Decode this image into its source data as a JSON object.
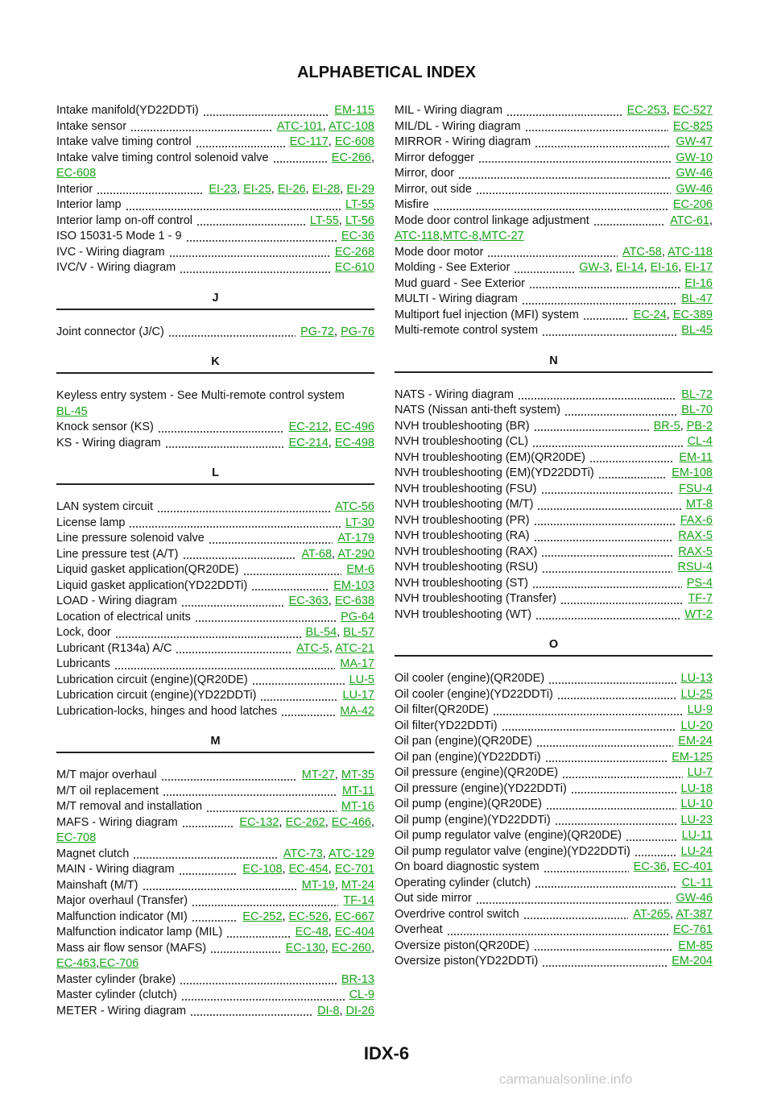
{
  "header": {
    "title": "ALPHABETICAL INDEX"
  },
  "link_separator": ", ",
  "columns": [
    {
      "sections": [
        {
          "entries": [
            {
              "text": "Intake manifold(YD22DDTi)",
              "links": [
                "EM-115"
              ]
            },
            {
              "text": "Intake sensor",
              "links": [
                "ATC-101",
                "ATC-108"
              ]
            },
            {
              "text": "Intake valve timing control",
              "links": [
                "EC-117",
                "EC-608"
              ]
            },
            {
              "text": "Intake valve timing control solenoid valve",
              "links": [
                "EC-266"
              ],
              "wrap_links": [
                "EC-608"
              ]
            },
            {
              "text": "Interior",
              "links": [
                "EI-23",
                "EI-25",
                "EI-26",
                "EI-28",
                "EI-29"
              ]
            },
            {
              "text": "Interior lamp",
              "links": [
                "LT-55"
              ]
            },
            {
              "text": "Interior lamp on-off control",
              "links": [
                "LT-55",
                "LT-56"
              ]
            },
            {
              "text": "ISO 15031-5 Mode 1 - 9",
              "links": [
                "EC-36"
              ]
            },
            {
              "text": "IVC - Wiring diagram",
              "links": [
                "EC-268"
              ]
            },
            {
              "text": "IVC/V - Wiring diagram",
              "links": [
                "EC-610"
              ]
            }
          ]
        },
        {
          "letter": "J",
          "entries": [
            {
              "text": "Joint connector (J/C)",
              "links": [
                "PG-72",
                "PG-76"
              ]
            }
          ]
        },
        {
          "letter": "K",
          "entries": [
            {
              "text": "Keyless entry system - See Multi-remote control system",
              "wrap_links": [
                "BL-45"
              ]
            },
            {
              "text": "Knock sensor (KS)",
              "links": [
                "EC-212",
                "EC-496"
              ]
            },
            {
              "text": "KS - Wiring diagram",
              "links": [
                "EC-214",
                "EC-498"
              ]
            }
          ]
        },
        {
          "letter": "L",
          "entries": [
            {
              "text": "LAN system circuit",
              "links": [
                "ATC-56"
              ]
            },
            {
              "text": "License lamp",
              "links": [
                "LT-30"
              ]
            },
            {
              "text": "Line pressure solenoid valve",
              "links": [
                "AT-179"
              ]
            },
            {
              "text": "Line pressure test (A/T)",
              "links": [
                "AT-68",
                "AT-290"
              ]
            },
            {
              "text": "Liquid gasket application(QR20DE)",
              "links": [
                "EM-6"
              ]
            },
            {
              "text": "Liquid gasket application(YD22DDTi)",
              "links": [
                "EM-103"
              ]
            },
            {
              "text": "LOAD - Wiring diagram",
              "links": [
                "EC-363",
                "EC-638"
              ]
            },
            {
              "text": "Location of electrical units",
              "links": [
                "PG-64"
              ]
            },
            {
              "text": "Lock, door",
              "links": [
                "BL-54",
                "BL-57"
              ]
            },
            {
              "text": "Lubricant (R134a) A/C",
              "links": [
                "ATC-5",
                "ATC-21"
              ]
            },
            {
              "text": "Lubricants",
              "links": [
                "MA-17"
              ]
            },
            {
              "text": "Lubrication circuit (engine)(QR20DE)",
              "links": [
                "LU-5"
              ]
            },
            {
              "text": "Lubrication circuit (engine)(YD22DDTi)",
              "links": [
                "LU-17"
              ]
            },
            {
              "text": "Lubrication-locks, hinges and hood latches",
              "links": [
                "MA-42"
              ]
            }
          ]
        },
        {
          "letter": "M",
          "entries": [
            {
              "text": "M/T major overhaul",
              "links": [
                "MT-27",
                "MT-35"
              ]
            },
            {
              "text": "M/T oil replacement",
              "links": [
                "MT-11"
              ]
            },
            {
              "text": "M/T removal and installation",
              "links": [
                "MT-16"
              ]
            },
            {
              "text": "MAFS - Wiring diagram",
              "links": [
                "EC-132",
                "EC-262",
                "EC-466"
              ],
              "wrap_links": [
                "EC-708"
              ]
            },
            {
              "text": "Magnet clutch",
              "links": [
                "ATC-73",
                "ATC-129"
              ]
            },
            {
              "text": "MAIN - Wiring diagram",
              "links": [
                "EC-108",
                "EC-454",
                "EC-701"
              ]
            },
            {
              "text": "Mainshaft (M/T)",
              "links": [
                "MT-19",
                "MT-24"
              ]
            },
            {
              "text": "Major overhaul (Transfer)",
              "links": [
                "TF-14"
              ]
            },
            {
              "text": "Malfunction indicator (MI)",
              "links": [
                "EC-252",
                "EC-526",
                "EC-667"
              ]
            },
            {
              "text": "Malfunction indicator lamp (MIL)",
              "links": [
                "EC-48",
                "EC-404"
              ]
            },
            {
              "text": "Mass air flow sensor (MAFS)",
              "links": [
                "EC-130",
                "EC-260"
              ],
              "wrap_links": [
                "EC-463",
                "EC-706"
              ]
            },
            {
              "text": "Master cylinder (brake)",
              "links": [
                "BR-13"
              ]
            },
            {
              "text": "Master cylinder (clutch)",
              "links": [
                "CL-9"
              ]
            },
            {
              "text": "METER - Wiring diagram",
              "links": [
                "DI-8",
                "DI-26"
              ]
            }
          ]
        }
      ]
    },
    {
      "sections": [
        {
          "entries": [
            {
              "text": "MIL - Wiring diagram",
              "links": [
                "EC-253",
                "EC-527"
              ]
            },
            {
              "text": "MIL/DL - Wiring diagram",
              "links": [
                "EC-825"
              ]
            },
            {
              "text": "MIRROR - Wiring diagram",
              "links": [
                "GW-47"
              ]
            },
            {
              "text": "Mirror defogger",
              "links": [
                "GW-10"
              ]
            },
            {
              "text": "Mirror, door",
              "links": [
                "GW-46"
              ]
            },
            {
              "text": "Mirror, out side",
              "links": [
                "GW-46"
              ]
            },
            {
              "text": "Misfire",
              "links": [
                "EC-206"
              ]
            },
            {
              "text": "Mode door control linkage adjustment",
              "links": [
                "ATC-61"
              ],
              "wrap_links": [
                "ATC-118",
                "MTC-8",
                "MTC-27"
              ]
            },
            {
              "text": "Mode door motor",
              "links": [
                "ATC-58",
                "ATC-118"
              ]
            },
            {
              "text": "Molding - See Exterior",
              "links": [
                "GW-3",
                "EI-14",
                "EI-16",
                "EI-17"
              ]
            },
            {
              "text": "Mud guard - See Exterior",
              "links": [
                "EI-16"
              ]
            },
            {
              "text": "MULTI - Wiring diagram",
              "links": [
                "BL-47"
              ]
            },
            {
              "text": "Multiport fuel injection (MFI) system",
              "links": [
                "EC-24",
                "EC-389"
              ]
            },
            {
              "text": "Multi-remote control system",
              "links": [
                "BL-45"
              ]
            }
          ]
        },
        {
          "letter": "N",
          "entries": [
            {
              "text": "NATS - Wiring diagram",
              "links": [
                "BL-72"
              ]
            },
            {
              "text": "NATS (Nissan anti-theft system)",
              "links": [
                "BL-70"
              ]
            },
            {
              "text": "NVH troubleshooting (BR)",
              "links": [
                "BR-5",
                "PB-2"
              ]
            },
            {
              "text": "NVH troubleshooting (CL)",
              "links": [
                "CL-4"
              ]
            },
            {
              "text": "NVH troubleshooting (EM)(QR20DE)",
              "links": [
                "EM-11"
              ]
            },
            {
              "text": "NVH troubleshooting (EM)(YD22DDTi)",
              "links": [
                "EM-108"
              ]
            },
            {
              "text": "NVH troubleshooting (FSU)",
              "links": [
                "FSU-4"
              ]
            },
            {
              "text": "NVH troubleshooting (M/T)",
              "links": [
                "MT-8"
              ]
            },
            {
              "text": "NVH troubleshooting (PR)",
              "links": [
                "FAX-6"
              ]
            },
            {
              "text": "NVH troubleshooting (RA)",
              "links": [
                "RAX-5"
              ]
            },
            {
              "text": "NVH troubleshooting (RAX)",
              "links": [
                "RAX-5"
              ]
            },
            {
              "text": "NVH troubleshooting (RSU)",
              "links": [
                "RSU-4"
              ]
            },
            {
              "text": "NVH troubleshooting (ST)",
              "links": [
                "PS-4"
              ]
            },
            {
              "text": "NVH troubleshooting (Transfer)",
              "links": [
                "TF-7"
              ]
            },
            {
              "text": "NVH troubleshooting (WT)",
              "links": [
                "WT-2"
              ]
            }
          ]
        },
        {
          "letter": "O",
          "entries": [
            {
              "text": "Oil cooler (engine)(QR20DE)",
              "links": [
                "LU-13"
              ]
            },
            {
              "text": "Oil cooler (engine)(YD22DDTi)",
              "links": [
                "LU-25"
              ]
            },
            {
              "text": "Oil filter(QR20DE)",
              "links": [
                "LU-9"
              ]
            },
            {
              "text": "Oil filter(YD22DDTi)",
              "links": [
                "LU-20"
              ]
            },
            {
              "text": "Oil pan (engine)(QR20DE)",
              "links": [
                "EM-24"
              ]
            },
            {
              "text": "Oil pan (engine)(YD22DDTi)",
              "links": [
                "EM-125"
              ]
            },
            {
              "text": "Oil pressure (engine)(QR20DE)",
              "links": [
                "LU-7"
              ]
            },
            {
              "text": "Oil pressure (engine)(YD22DDTi)",
              "links": [
                "LU-18"
              ]
            },
            {
              "text": "Oil pump (engine)(QR20DE)",
              "links": [
                "LU-10"
              ]
            },
            {
              "text": "Oil pump (engine)(YD22DDTi)",
              "links": [
                "LU-23"
              ]
            },
            {
              "text": "Oil pump regulator valve (engine)(QR20DE)",
              "links": [
                "LU-11"
              ]
            },
            {
              "text": "Oil pump regulator valve (engine)(YD22DDTi)",
              "links": [
                "LU-24"
              ]
            },
            {
              "text": "On board diagnostic system",
              "links": [
                "EC-36",
                "EC-401"
              ]
            },
            {
              "text": "Operating cylinder (clutch)",
              "links": [
                "CL-11"
              ]
            },
            {
              "text": "Out side mirror",
              "links": [
                "GW-46"
              ]
            },
            {
              "text": "Overdrive control switch",
              "links": [
                "AT-265",
                "AT-387"
              ]
            },
            {
              "text": "Overheat",
              "links": [
                "EC-761"
              ]
            },
            {
              "text": "Oversize piston(QR20DE)",
              "links": [
                "EM-85"
              ]
            },
            {
              "text": "Oversize piston(YD22DDTi)",
              "links": [
                "EM-204"
              ]
            }
          ]
        }
      ]
    }
  ],
  "footer": "IDX-6",
  "watermark": "carmanualsonline.info"
}
